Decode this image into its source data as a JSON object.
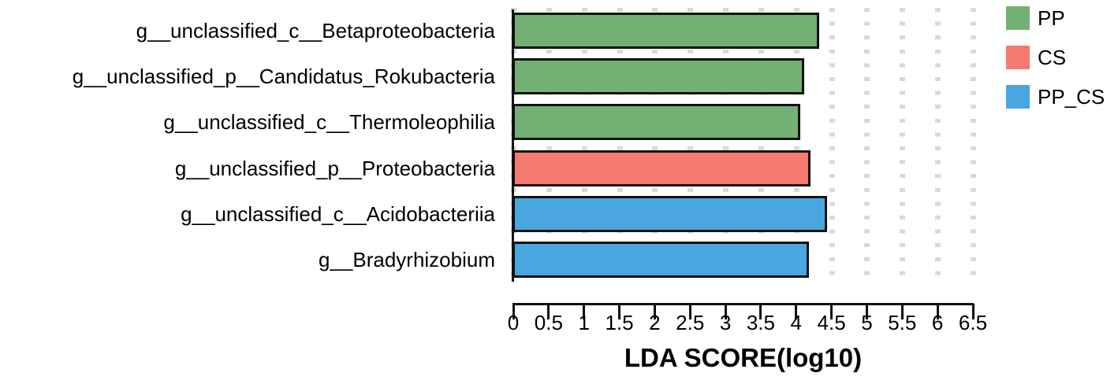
{
  "chart_data": {
    "type": "bar",
    "orientation": "horizontal",
    "title": "",
    "xlabel": "LDA SCORE(log10)",
    "ylabel": "",
    "xlim": [
      0,
      6.5
    ],
    "xticks": [
      "0",
      "0.5",
      "1",
      "1.5",
      "2",
      "2.5",
      "3",
      "3.5",
      "4",
      "4.5",
      "5",
      "5.5",
      "6",
      "6.5"
    ],
    "grid": "dotted vertical",
    "legend_position": "top-right",
    "categories": [
      "g__unclassified_c__Betaproteobacteria",
      "g__unclassified_p__Candidatus_Rokubacteria",
      "g__unclassified_c__Thermoleophilia",
      "g__unclassified_p__Proteobacteria",
      "g__unclassified_c__Acidobacteriia",
      "g__Bradyrhizobium"
    ],
    "values": [
      4.32,
      4.1,
      4.05,
      4.19,
      4.43,
      4.17
    ],
    "groups": [
      "PP",
      "PP",
      "PP",
      "CS",
      "PP_CS",
      "PP_CS"
    ],
    "series": [
      {
        "name": "PP",
        "color": "#72B173",
        "values": [
          4.32,
          4.1,
          4.05,
          null,
          null,
          null
        ]
      },
      {
        "name": "CS",
        "color": "#F57A70",
        "values": [
          null,
          null,
          null,
          4.19,
          null,
          null
        ]
      },
      {
        "name": "PP_CS",
        "color": "#4AA6DE",
        "values": [
          null,
          null,
          null,
          null,
          4.43,
          4.17
        ]
      }
    ]
  },
  "legend": [
    {
      "label": "PP",
      "color": "#72B173"
    },
    {
      "label": "CS",
      "color": "#F57A70"
    },
    {
      "label": "PP_CS",
      "color": "#4AA6DE"
    }
  ]
}
